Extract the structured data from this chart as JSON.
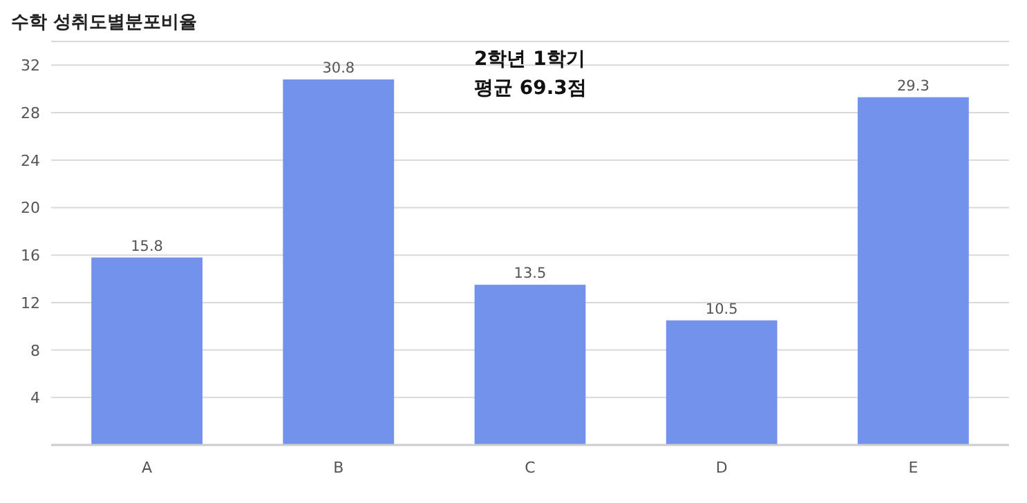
{
  "chart_data": {
    "type": "bar",
    "title": "수학 성취도별분포비율",
    "categories": [
      "A",
      "B",
      "C",
      "D",
      "E"
    ],
    "values": [
      15.8,
      30.8,
      13.5,
      10.5,
      29.3
    ],
    "color": "#7292ec",
    "ylim": [
      0,
      34
    ],
    "yticks": [
      4,
      8,
      12,
      16,
      20,
      24,
      28,
      32
    ],
    "grid": "y",
    "data_labels": true,
    "annotations": [
      "2학년 1학기",
      "평균 69.3점"
    ]
  }
}
